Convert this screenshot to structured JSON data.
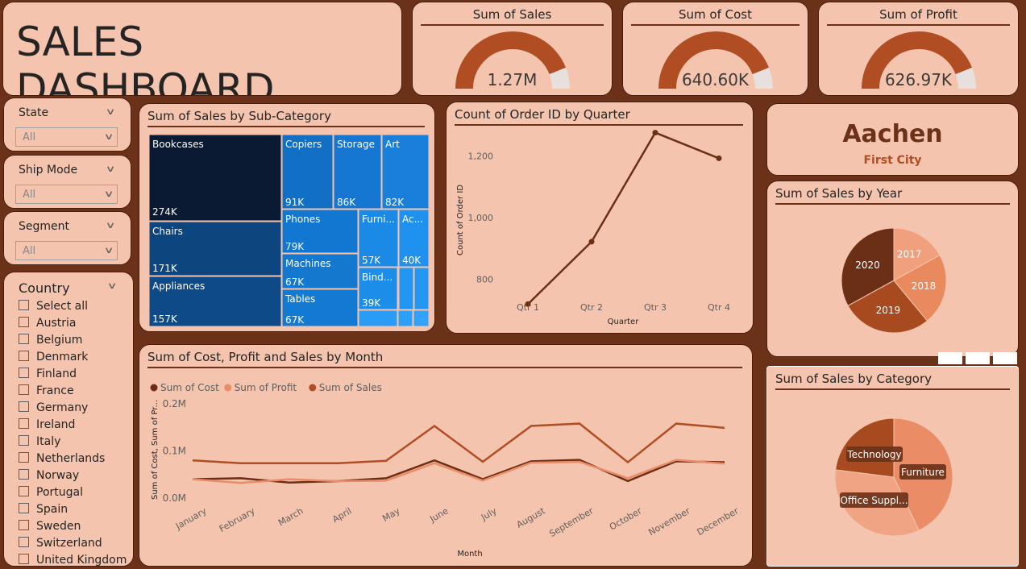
{
  "header": {
    "title": "SALES DASHBOARD"
  },
  "kpis": [
    {
      "title": "Sum of Sales",
      "value": "1.27M",
      "fraction": 0.88
    },
    {
      "title": "Sum of Cost",
      "value": "640.60K",
      "fraction": 0.88
    },
    {
      "title": "Sum of Profit",
      "value": "626.97K",
      "fraction": 0.88
    }
  ],
  "slicers": {
    "state": {
      "label": "State",
      "value": "All"
    },
    "ship_mode": {
      "label": "Ship Mode",
      "value": "All"
    },
    "segment": {
      "label": "Segment",
      "value": "All"
    }
  },
  "country": {
    "title": "Country",
    "items": [
      "Select all",
      "Austria",
      "Belgium",
      "Denmark",
      "Finland",
      "France",
      "Germany",
      "Ireland",
      "Italy",
      "Netherlands",
      "Norway",
      "Portugal",
      "Spain",
      "Sweden",
      "Switzerland",
      "United Kingdom"
    ]
  },
  "city_card": {
    "value": "Aachen",
    "label": "First City"
  },
  "colors": {
    "bg": "#6b3219",
    "card": "#f5c4ae",
    "cost": "#6b2f16",
    "profit": "#ea8c66",
    "sales": "#b14d22"
  },
  "chart_data": [
    {
      "id": "treemap",
      "type": "treemap",
      "title": "Sum of Sales by Sub-Category",
      "items": [
        {
          "label": "Bookcases",
          "value": "274K"
        },
        {
          "label": "Chairs",
          "value": "171K"
        },
        {
          "label": "Appliances",
          "value": "157K"
        },
        {
          "label": "Copiers",
          "value": "91K"
        },
        {
          "label": "Storage",
          "value": "86K"
        },
        {
          "label": "Art",
          "value": "82K"
        },
        {
          "label": "Phones",
          "value": "79K"
        },
        {
          "label": "Furni...",
          "value": "57K"
        },
        {
          "label": "Ac...",
          "value": "40K"
        },
        {
          "label": "Machines",
          "value": "67K"
        },
        {
          "label": "Bind...",
          "value": "39K"
        },
        {
          "label": "Tables",
          "value": "67K"
        }
      ]
    },
    {
      "id": "quarter",
      "type": "line",
      "title": "Count of Order ID by Quarter",
      "categories": [
        "Qtr 1",
        "Qtr 2",
        "Qtr 3",
        "Qtr 4"
      ],
      "values": [
        720,
        922,
        1275,
        1192
      ],
      "ylim": [
        700,
        1300
      ],
      "yticks": [
        800,
        1000,
        1200
      ],
      "ytick_labels": [
        "800",
        "1,000",
        "1,200"
      ],
      "xlabel": "Quarter",
      "ylabel": "Count of Order ID"
    },
    {
      "id": "year",
      "type": "pie",
      "title": "Sum of Sales by Year",
      "slices": [
        {
          "label": "2017",
          "value": 17,
          "color": "#f0a07c"
        },
        {
          "label": "2018",
          "value": 22,
          "color": "#e8895e"
        },
        {
          "label": "2019",
          "value": 28,
          "color": "#a84a20"
        },
        {
          "label": "2020",
          "value": 33,
          "color": "#6b2f16"
        }
      ]
    },
    {
      "id": "category",
      "type": "pie",
      "title": "Sum of Sales by Category",
      "slices": [
        {
          "label": "Furniture",
          "value": 43,
          "color": "#ea8c66"
        },
        {
          "label": "Office Suppl...",
          "value": 34,
          "color": "#f0a484"
        },
        {
          "label": "Technology",
          "value": 23,
          "color": "#a84a20"
        }
      ]
    },
    {
      "id": "month",
      "type": "line",
      "title": "Sum of Cost, Profit and Sales by Month",
      "categories": [
        "January",
        "February",
        "March",
        "April",
        "May",
        "June",
        "July",
        "August",
        "September",
        "October",
        "November",
        "December"
      ],
      "series": [
        {
          "name": "Sum of Cost",
          "color": "#6b2f16",
          "values": [
            0.04,
            0.042,
            0.033,
            0.036,
            0.042,
            0.08,
            0.04,
            0.078,
            0.081,
            0.036,
            0.078,
            0.076
          ]
        },
        {
          "name": "Sum of Profit",
          "color": "#ea8c66",
          "values": [
            0.04,
            0.032,
            0.04,
            0.036,
            0.037,
            0.074,
            0.037,
            0.075,
            0.077,
            0.042,
            0.081,
            0.073
          ]
        },
        {
          "name": "Sum of Sales",
          "color": "#b14d22",
          "values": [
            0.08,
            0.074,
            0.074,
            0.074,
            0.079,
            0.153,
            0.077,
            0.153,
            0.158,
            0.076,
            0.158,
            0.149
          ]
        }
      ],
      "ylim": [
        0,
        0.2
      ],
      "yticks": [
        0,
        0.1,
        0.2
      ],
      "ytick_labels": [
        "0.0M",
        "0.1M",
        "0.2M"
      ],
      "xlabel": "Month",
      "ylabel": "Sum of Cost, Sum of Pr..."
    }
  ]
}
